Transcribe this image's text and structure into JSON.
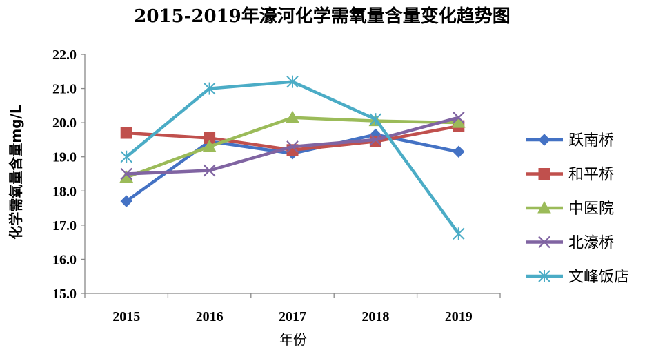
{
  "chart_data": {
    "type": "line",
    "title": "2015-2019年濠河化学需氧量含量变化趋势图",
    "xlabel": "年份",
    "ylabel": "化学需氧量含量mg/L",
    "categories": [
      "2015",
      "2016",
      "2017",
      "2018",
      "2019"
    ],
    "ylim": [
      15.0,
      22.0
    ],
    "yticks": [
      "15.0",
      "16.0",
      "17.0",
      "18.0",
      "19.0",
      "20.0",
      "21.0",
      "22.0"
    ],
    "legend_position": "right",
    "grid": false,
    "series": [
      {
        "name": "跃南桥",
        "color": "#4472C4",
        "marker": "diamond",
        "values": [
          17.7,
          19.45,
          19.1,
          19.65,
          19.15
        ]
      },
      {
        "name": "和平桥",
        "color": "#C0504D",
        "marker": "square",
        "values": [
          19.7,
          19.55,
          19.2,
          19.45,
          19.9
        ]
      },
      {
        "name": "中医院",
        "color": "#9BBB59",
        "marker": "triangle",
        "values": [
          18.4,
          19.3,
          20.15,
          20.05,
          20.0
        ]
      },
      {
        "name": "北濠桥",
        "color": "#8064A2",
        "marker": "x",
        "values": [
          18.5,
          18.6,
          19.3,
          19.5,
          20.15
        ]
      },
      {
        "name": "文峰饭店",
        "color": "#4BACC6",
        "marker": "asterisk",
        "values": [
          19.0,
          21.0,
          21.2,
          20.1,
          16.75
        ]
      }
    ]
  }
}
